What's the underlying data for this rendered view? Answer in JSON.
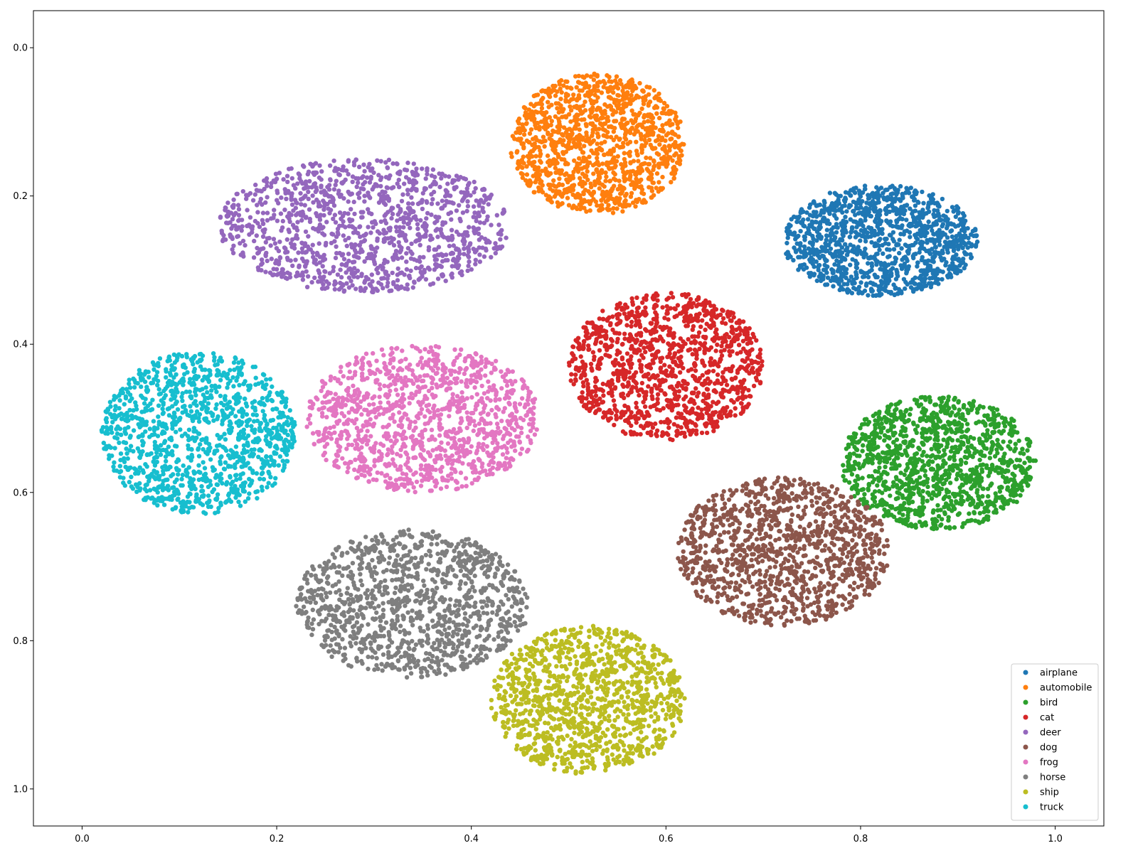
{
  "chart_data": {
    "type": "scatter",
    "title": "",
    "xlabel": "",
    "ylabel": "",
    "xlim": [
      -0.05,
      1.05
    ],
    "ylim": [
      -0.05,
      1.05
    ],
    "y_inverted": true,
    "grid": false,
    "legend_position": "bottom-right",
    "x_ticks": [
      "0.0",
      "0.2",
      "0.4",
      "0.6",
      "0.8",
      "1.0"
    ],
    "y_ticks": [
      "0.0",
      "0.2",
      "0.4",
      "0.6",
      "0.8",
      "1.0"
    ],
    "series": [
      {
        "name": "airplane",
        "color": "#1f77b4",
        "center": [
          0.82,
          0.26
        ],
        "spread": [
          0.1,
          0.075
        ],
        "count": 1200
      },
      {
        "name": "automobile",
        "color": "#ff7f0e",
        "center": [
          0.53,
          0.13
        ],
        "spread": [
          0.09,
          0.095
        ],
        "count": 1200
      },
      {
        "name": "bird",
        "color": "#2ca02c",
        "center": [
          0.88,
          0.56
        ],
        "spread": [
          0.1,
          0.09
        ],
        "count": 1200
      },
      {
        "name": "cat",
        "color": "#d62728",
        "center": [
          0.6,
          0.43
        ],
        "spread": [
          0.1,
          0.1
        ],
        "count": 1200
      },
      {
        "name": "deer",
        "color": "#9467bd",
        "center": [
          0.29,
          0.24
        ],
        "spread": [
          0.15,
          0.09
        ],
        "count": 1200
      },
      {
        "name": "dog",
        "color": "#8c564b",
        "center": [
          0.72,
          0.68
        ],
        "spread": [
          0.11,
          0.1
        ],
        "count": 1200
      },
      {
        "name": "frog",
        "color": "#e377c2",
        "center": [
          0.35,
          0.5
        ],
        "spread": [
          0.12,
          0.1
        ],
        "count": 1200
      },
      {
        "name": "horse",
        "color": "#7f7f7f",
        "center": [
          0.34,
          0.75
        ],
        "spread": [
          0.12,
          0.1
        ],
        "count": 1200
      },
      {
        "name": "ship",
        "color": "#bcbd22",
        "center": [
          0.52,
          0.88
        ],
        "spread": [
          0.1,
          0.1
        ],
        "count": 1200
      },
      {
        "name": "truck",
        "color": "#17becf",
        "center": [
          0.12,
          0.52
        ],
        "spread": [
          0.1,
          0.11
        ],
        "count": 1200
      }
    ]
  }
}
